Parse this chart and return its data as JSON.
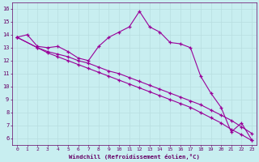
{
  "xlabel": "Windchill (Refroidissement éolien,°C)",
  "bg_color": "#c8eef0",
  "line_color": "#990099",
  "grid_color": "#b8dde0",
  "axis_label_color": "#660066",
  "tick_color": "#660066",
  "xlim": [
    -0.5,
    23.5
  ],
  "ylim": [
    5.5,
    16.5
  ],
  "xticks": [
    0,
    1,
    2,
    3,
    4,
    5,
    6,
    7,
    8,
    9,
    10,
    11,
    12,
    13,
    14,
    15,
    16,
    17,
    18,
    19,
    20,
    21,
    22,
    23
  ],
  "yticks": [
    6,
    7,
    8,
    9,
    10,
    11,
    12,
    13,
    14,
    15,
    16
  ],
  "lines": [
    {
      "x": [
        0,
        1,
        2,
        3,
        4,
        5,
        6,
        7,
        8,
        9,
        10,
        11,
        12,
        13,
        14,
        15,
        16,
        17,
        18,
        19,
        20,
        21,
        22,
        23
      ],
      "y": [
        13.8,
        14.0,
        13.1,
        13.0,
        13.1,
        12.7,
        12.2,
        12.0,
        13.1,
        13.8,
        14.2,
        14.6,
        15.8,
        14.6,
        14.2,
        13.4,
        13.3,
        13.0,
        10.8,
        9.5,
        8.4,
        6.5,
        7.2,
        5.9
      ]
    },
    {
      "x": [
        0,
        2,
        3,
        4,
        5,
        6,
        7,
        8,
        9,
        10,
        11,
        12,
        13,
        14,
        15,
        16,
        17,
        18,
        19,
        20,
        21,
        22,
        23
      ],
      "y": [
        13.8,
        13.0,
        12.7,
        12.5,
        12.3,
        12.0,
        11.8,
        11.5,
        11.2,
        11.0,
        10.7,
        10.4,
        10.1,
        9.8,
        9.5,
        9.2,
        8.9,
        8.6,
        8.2,
        7.8,
        7.4,
        6.9,
        6.4
      ]
    },
    {
      "x": [
        0,
        2,
        3,
        4,
        5,
        6,
        7,
        8,
        9,
        10,
        11,
        12,
        13,
        14,
        15,
        16,
        17,
        18,
        19,
        20,
        21,
        22,
        23
      ],
      "y": [
        13.8,
        13.0,
        12.6,
        12.3,
        12.0,
        11.7,
        11.4,
        11.1,
        10.8,
        10.5,
        10.2,
        9.9,
        9.6,
        9.3,
        9.0,
        8.7,
        8.4,
        8.0,
        7.6,
        7.2,
        6.7,
        6.3,
        5.85
      ]
    }
  ]
}
